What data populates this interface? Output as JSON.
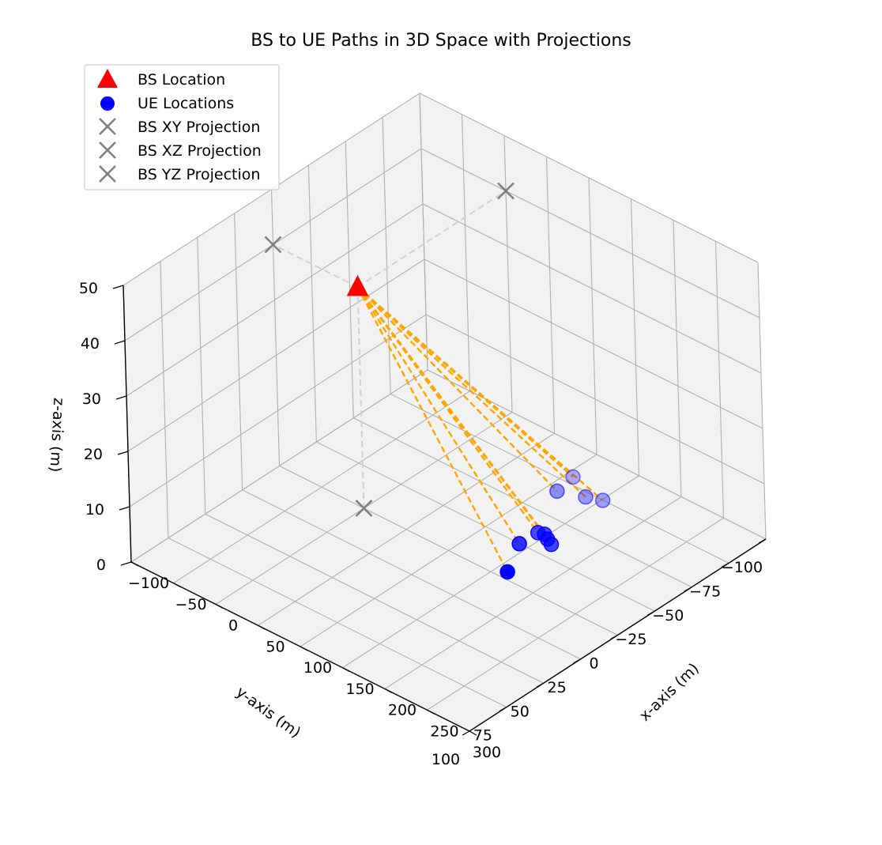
{
  "chart_data": {
    "type": "scatter",
    "title": "BS to UE Paths in 3D Space with Projections",
    "xlabel": "x-axis (m)",
    "ylabel": "y-axis (m)",
    "zlabel": "z-axis (m)",
    "xlim": [
      -100,
      300
    ],
    "ylim": [
      -100,
      100
    ],
    "zlim": [
      0,
      50
    ],
    "x_ticks": [
      -100,
      -50,
      0,
      50,
      100,
      150,
      200,
      250,
      300
    ],
    "y_ticks": [
      -100,
      -75,
      -50,
      -25,
      0,
      25,
      50,
      75,
      100
    ],
    "z_ticks": [
      0,
      10,
      20,
      30,
      40,
      50
    ],
    "x_tick_labels": [
      "−100",
      "−50",
      "0",
      "50",
      "100",
      "150",
      "200",
      "250",
      "300"
    ],
    "y_tick_labels": [
      "−100",
      "−75",
      "−50",
      "−25",
      "0",
      "25",
      "50",
      "75",
      "100"
    ],
    "z_tick_labels": [
      "0",
      "10",
      "20",
      "30",
      "40",
      "50"
    ],
    "grid": true,
    "legend_position": "top-left",
    "colors": {
      "bs": "#ff0000",
      "ue": "#0000ff",
      "path": "#ffa500",
      "projection": "#808080",
      "projection_line": "#d3d3d3"
    },
    "legend": [
      {
        "label": "BS Location",
        "marker": "triangle",
        "color": "#ff0000"
      },
      {
        "label": "UE Locations",
        "marker": "circle",
        "color": "#0000ff"
      },
      {
        "label": "BS XY Projection",
        "marker": "x",
        "color": "#808080"
      },
      {
        "label": "BS XZ Projection",
        "marker": "x",
        "color": "#808080"
      },
      {
        "label": "BS YZ Projection",
        "marker": "x",
        "color": "#808080"
      }
    ],
    "bs": {
      "x": 0,
      "y": 0,
      "z": 40
    },
    "ue": [
      {
        "x": 170,
        "y": 0,
        "z": 1.5
      },
      {
        "x": 149,
        "y": -20,
        "z": 1.5
      },
      {
        "x": 171,
        "y": -29,
        "z": 1.5
      },
      {
        "x": 163,
        "y": -31,
        "z": 1.5
      },
      {
        "x": 156,
        "y": -33,
        "z": 1.5
      },
      {
        "x": 150,
        "y": -32,
        "z": 1.5
      },
      {
        "x": 145,
        "y": -67,
        "z": 1.5
      },
      {
        "x": 160,
        "y": -70,
        "z": 1.5
      },
      {
        "x": 120,
        "y": -62,
        "z": 1.5
      },
      {
        "x": 116,
        "y": -75,
        "z": 1.5
      }
    ],
    "projections": {
      "xy": {
        "x": 0,
        "y": 0,
        "z": 0
      },
      "xz": {
        "x": 0,
        "y": -100,
        "z": 40
      },
      "yz": {
        "x": -100,
        "y": 0,
        "z": 40
      }
    }
  }
}
